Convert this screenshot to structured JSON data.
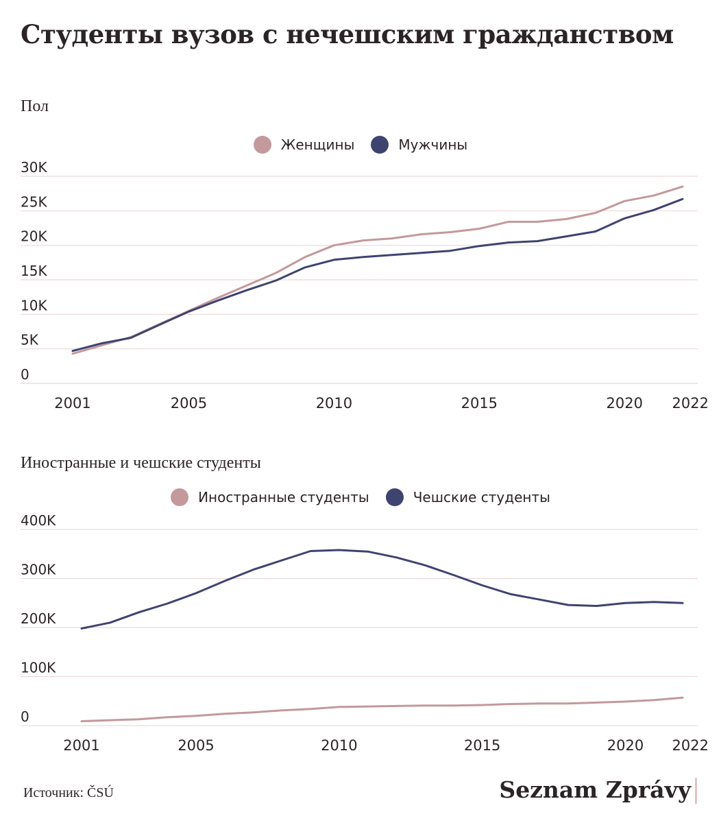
{
  "title": "Студенты вузов с нечешским гражданством",
  "source": "Источник: ČSÚ",
  "brand": "Seznam Zprávy",
  "colors": {
    "pink": "#c3999b",
    "navy": "#3f436f",
    "grid": "#ecd7da"
  },
  "chart_data": [
    {
      "type": "line",
      "title": "Пол",
      "legend": [
        "Женщины",
        "Мужчины"
      ],
      "y_ticks": [
        "0",
        "5K",
        "10K",
        "15K",
        "20K",
        "25K",
        "30K"
      ],
      "ylim": [
        0,
        30000
      ],
      "x_ticks": [
        "2001",
        "2005",
        "2010",
        "2015",
        "2020",
        "2022"
      ],
      "xlim": [
        2001,
        2022
      ],
      "x": [
        2001,
        2002,
        2003,
        2004,
        2005,
        2006,
        2007,
        2008,
        2009,
        2010,
        2011,
        2012,
        2013,
        2014,
        2015,
        2016,
        2017,
        2018,
        2019,
        2020,
        2021,
        2022
      ],
      "series": [
        {
          "name": "Женщины",
          "color": "#c3999b",
          "values": [
            4300,
            5500,
            6700,
            8600,
            10500,
            12400,
            14200,
            16000,
            18300,
            20000,
            20700,
            21000,
            21600,
            21900,
            22400,
            23400,
            23400,
            23800,
            24700,
            26400,
            27200,
            28500
          ]
        },
        {
          "name": "Мужчины",
          "color": "#3f436f",
          "values": [
            4700,
            5800,
            6600,
            8500,
            10400,
            12000,
            13500,
            14900,
            16800,
            17900,
            18300,
            18600,
            18900,
            19200,
            19900,
            20400,
            20600,
            21300,
            22000,
            23900,
            25100,
            26700
          ]
        }
      ]
    },
    {
      "type": "line",
      "title": "Иностранные и чешские студенты",
      "legend": [
        "Иностранные студенты",
        "Чешские студенты"
      ],
      "y_ticks": [
        "0",
        "100K",
        "200K",
        "300K",
        "400K"
      ],
      "ylim": [
        0,
        400000
      ],
      "x_ticks": [
        "2001",
        "2005",
        "2010",
        "2015",
        "2020",
        "2022"
      ],
      "xlim": [
        2001,
        2022
      ],
      "x": [
        2001,
        2002,
        2003,
        2004,
        2005,
        2006,
        2007,
        2008,
        2009,
        2010,
        2011,
        2012,
        2013,
        2014,
        2015,
        2016,
        2017,
        2018,
        2019,
        2020,
        2021,
        2022
      ],
      "series": [
        {
          "name": "Иностранные студенты",
          "color": "#c3999b",
          "values": [
            9000,
            11000,
            13000,
            17000,
            20000,
            24000,
            27000,
            31000,
            34000,
            38000,
            39000,
            40000,
            41000,
            41000,
            42000,
            44000,
            45000,
            45000,
            47000,
            49000,
            52000,
            57000
          ]
        },
        {
          "name": "Чешские студенты",
          "color": "#3f436f",
          "values": [
            198000,
            210000,
            231000,
            249000,
            270000,
            295000,
            318000,
            337000,
            356000,
            358000,
            355000,
            343000,
            327000,
            307000,
            286000,
            268000,
            257000,
            246000,
            244000,
            250000,
            252000,
            250000
          ]
        }
      ]
    }
  ]
}
